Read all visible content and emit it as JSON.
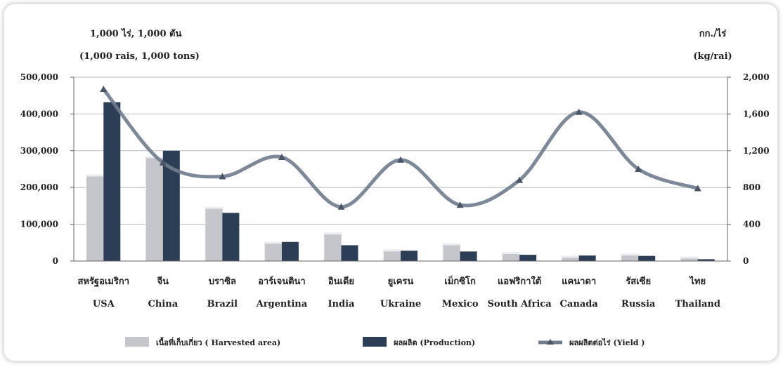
{
  "chart_data": {
    "type": "bar",
    "left_axis_unit_th": "1,000 ไร่,  1,000 ตัน",
    "left_axis_unit_en": "(1,000 rais,  1,000 tons)",
    "right_axis_unit_th": "กก./ไร่",
    "right_axis_unit_en": "(kg/rai)",
    "categories_th": [
      "สหรัฐอเมริกา",
      "จีน",
      "บราซิล",
      "อาร์เจนตินา",
      "อินเดีย",
      "ยูเครน",
      "เม็กซิโก",
      "แอฟริกาใต้",
      "แคนาดา",
      "รัสเซีย",
      "ไทย"
    ],
    "categories": [
      "USA",
      "China",
      "Brazil",
      "Argentina",
      "India",
      "Ukraine",
      "Mexico",
      "South Africa",
      "Canada",
      "Russia",
      "Thailand"
    ],
    "left_ylim": [
      0,
      500000
    ],
    "left_ticks": [
      "0",
      "100,000",
      "200,000",
      "300,000",
      "400,000",
      "500,000"
    ],
    "right_ylim": [
      0,
      2000
    ],
    "right_ticks": [
      "0",
      "400",
      "800",
      "1,200",
      "1,600",
      "2,000"
    ],
    "grid": true,
    "legend_position": "bottom",
    "series": [
      {
        "name": "เนื้อที่เก็บเกี่ยว ( Harvested area)",
        "type": "bar",
        "axis": "left",
        "color": "#c4c6cb",
        "values": [
          230000,
          280000,
          142000,
          47000,
          72000,
          26000,
          43000,
          19000,
          9000,
          15000,
          7000
        ]
      },
      {
        "name": "ผลผลิต (Production)",
        "type": "bar",
        "axis": "left",
        "color": "#2c3e55",
        "values": [
          432000,
          300000,
          131000,
          52000,
          43000,
          28000,
          26000,
          17000,
          15000,
          14000,
          5000
        ]
      },
      {
        "name": "ผลผลิตต่อไร่ (Yield )",
        "type": "line",
        "axis": "right",
        "color": "#6f7c8d",
        "values": [
          1870,
          1070,
          920,
          1130,
          590,
          1100,
          610,
          880,
          1620,
          1000,
          790
        ]
      }
    ]
  }
}
